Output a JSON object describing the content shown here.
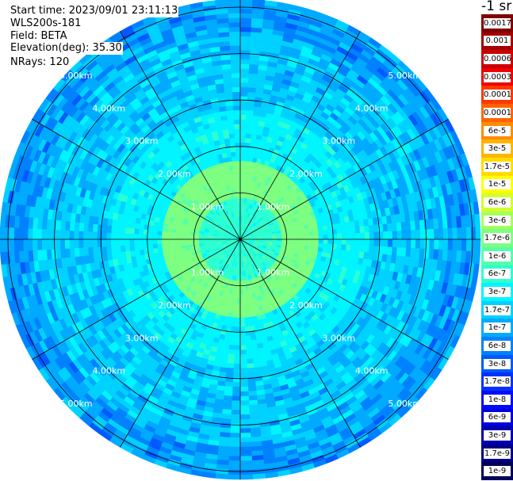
{
  "header": {
    "start_time": "Start time: 2023/09/01 23:11:13",
    "instrument": "WLS200s-181",
    "field": "Field: BETA",
    "elevation": "Elevation(deg): 35.30",
    "nrays": "NRays: 120"
  },
  "colorbar": {
    "title": "-1 sr",
    "labels": [
      "0.0017",
      "0.001",
      "0.0006",
      "0.0003",
      "0.00017",
      "0.0001",
      "6e-5",
      "3e-5",
      "1.7e-5",
      "1e-5",
      "6e-6",
      "3e-6",
      "1.7e-6",
      "1e-6",
      "6e-7",
      "3e-7",
      "1.7e-7",
      "1e-7",
      "6e-8",
      "3e-8",
      "1.7e-8",
      "1e-8",
      "6e-9",
      "3e-9",
      "1.7e-9",
      "1e-9"
    ],
    "colors": [
      "#800000",
      "#a50000",
      "#cd0000",
      "#f00000",
      "#ff3700",
      "#ff6400",
      "#ff8c00",
      "#ffb400",
      "#ffdc00",
      "#ffff00",
      "#d2ff2d",
      "#a5ff5a",
      "#7dff82",
      "#55ffaa",
      "#2dffd2",
      "#00f5ff",
      "#00d2ff",
      "#00aaff",
      "#0082ff",
      "#005aff",
      "#0032ff",
      "#000aff",
      "#0000d7",
      "#0000af",
      "#000087",
      "#00005a"
    ]
  },
  "chart_data": {
    "type": "heatmap",
    "projection": "polar (PPI scan)",
    "field": "BETA",
    "rays": 120,
    "elevation_deg": 35.3,
    "range_rings_km": [
      1.0,
      2.0,
      3.0,
      4.0,
      5.0
    ],
    "ring_labels": [
      "1.00km",
      "2.00km",
      "3.00km",
      "4.00km",
      "5.00km"
    ],
    "max_range_km": 5.0,
    "spokes_deg": [
      0,
      30,
      60,
      90,
      120,
      150,
      180,
      210,
      240,
      270,
      300,
      330
    ],
    "radial_profile": [
      {
        "range_km": [
          0.0,
          0.9
        ],
        "color_index": 14,
        "note": "cyan-green core"
      },
      {
        "range_km": [
          0.9,
          1.7
        ],
        "color_index": 12,
        "note": "green annulus"
      },
      {
        "range_km": [
          1.7,
          2.8
        ],
        "color_index": 15,
        "note": "cyan"
      },
      {
        "range_km": [
          2.8,
          4.5
        ],
        "color_index": 16,
        "note": "light blue"
      },
      {
        "range_km": [
          4.5,
          5.0
        ],
        "color_index": 17,
        "note": "blue, noisy"
      }
    ]
  }
}
